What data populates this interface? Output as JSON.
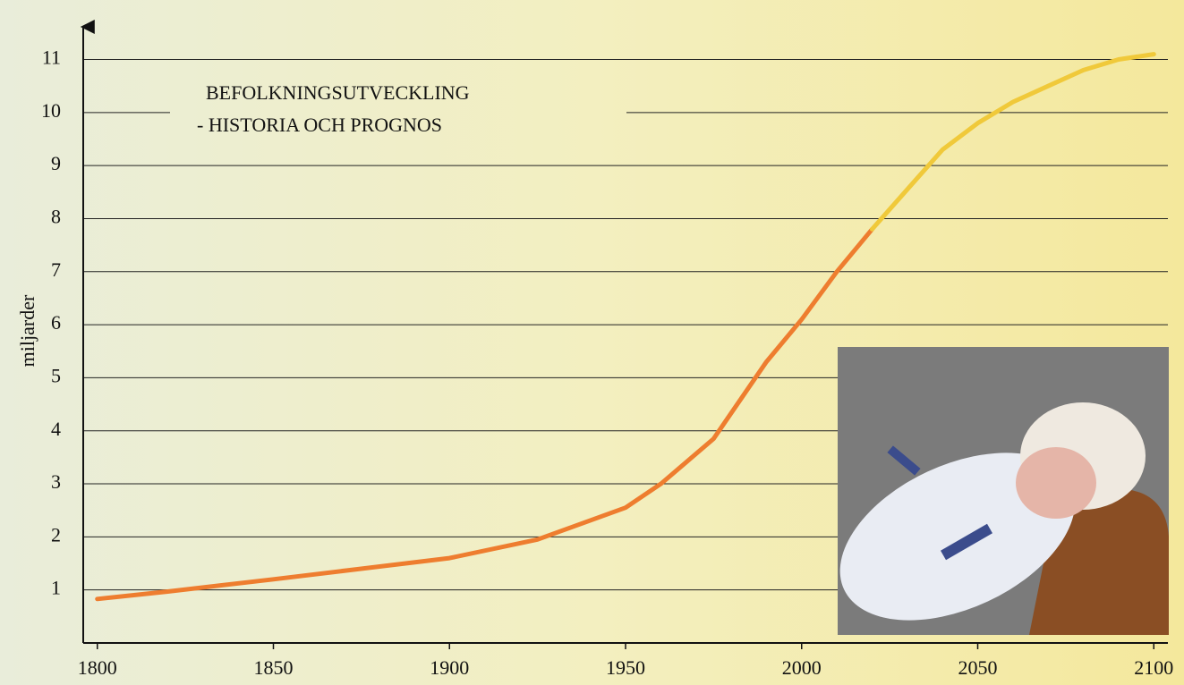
{
  "chart_data": {
    "type": "line",
    "title": [
      "BEFOLKNINGSUTVECKLING",
      "- HISTORIA OCH PROGNOS"
    ],
    "y_label": "miljarder",
    "x": [
      1800,
      1820,
      1850,
      1900,
      1925,
      1950,
      1960,
      1975,
      1990,
      2000,
      2010,
      2020,
      2030,
      2040,
      2050,
      2060,
      2070,
      2080,
      2090,
      2100
    ],
    "series": [
      {
        "color": "#ee7d2f",
        "values": [
          0.83,
          0.97,
          1.2,
          1.6,
          1.95,
          2.55,
          3.0,
          3.85,
          5.3,
          6.1,
          7.0,
          7.8,
          null,
          null,
          null,
          null,
          null,
          null,
          null,
          null
        ]
      },
      {
        "color": "#f0c93a",
        "values": [
          null,
          null,
          null,
          null,
          null,
          null,
          null,
          null,
          null,
          null,
          null,
          7.8,
          8.55,
          9.3,
          9.8,
          10.2,
          10.5,
          10.8,
          11.0,
          11.1
        ]
      }
    ],
    "xlim": [
      1796,
      2104
    ],
    "ylim": [
      0,
      11.7
    ],
    "xticks": [
      1800,
      1850,
      1900,
      1950,
      2000,
      2050,
      2100
    ],
    "yticks": [
      1,
      2,
      3,
      4,
      5,
      6,
      7,
      8,
      9,
      10,
      11
    ],
    "grid": true
  }
}
